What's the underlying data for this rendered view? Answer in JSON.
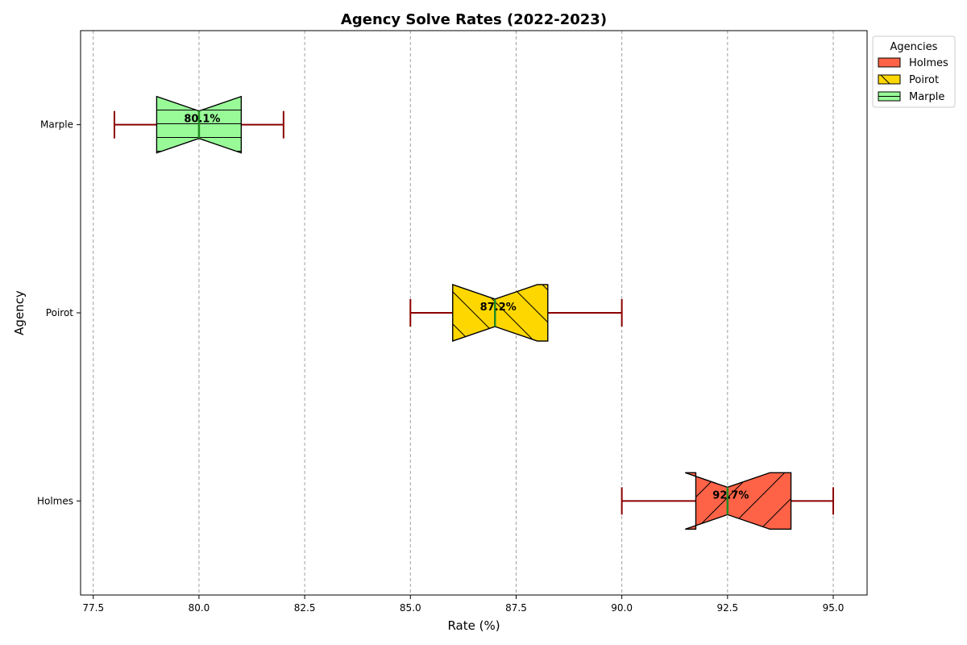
{
  "chart_data": {
    "type": "boxplot",
    "orientation": "horizontal",
    "title": "Agency Solve Rates (2022-2023)",
    "xlabel": "Rate (%)",
    "ylabel": "Agency",
    "xlim": [
      77.2,
      95.8
    ],
    "xticks": [
      "77.5",
      "80.0",
      "82.5",
      "85.0",
      "87.5",
      "90.0",
      "92.5",
      "95.0"
    ],
    "xtick_values": [
      77.5,
      80.0,
      82.5,
      85.0,
      87.5,
      90.0,
      92.5,
      95.0
    ],
    "grid": "x, dashed",
    "legend": {
      "title": "Agencies",
      "placement": "outside-top-right"
    },
    "series": [
      {
        "name": "Holmes",
        "color": "#FF6347",
        "hatch": "diagonal-up",
        "whisker_low": 90.0,
        "q1": 91.75,
        "median": 92.5,
        "q3": 94.0,
        "whisker_high": 95.0,
        "notch_low": 91.5,
        "notch_high": 93.5,
        "label": "92.7%"
      },
      {
        "name": "Poirot",
        "color": "#FFD700",
        "hatch": "diagonal-down",
        "whisker_low": 85.0,
        "q1": 86.0,
        "median": 87.0,
        "q3": 88.25,
        "whisker_high": 90.0,
        "notch_low": 86.0,
        "notch_high": 88.0,
        "label": "87.2%"
      },
      {
        "name": "Marple",
        "color": "#98FB98",
        "hatch": "horizontal",
        "whisker_low": 78.0,
        "q1": 79.0,
        "median": 80.0,
        "q3": 81.0,
        "whisker_high": 82.0,
        "notch_low": 79.0,
        "notch_high": 81.0,
        "label": "80.1%"
      }
    ],
    "whisker_color": "#8B0000",
    "median_color": "#228B22"
  }
}
